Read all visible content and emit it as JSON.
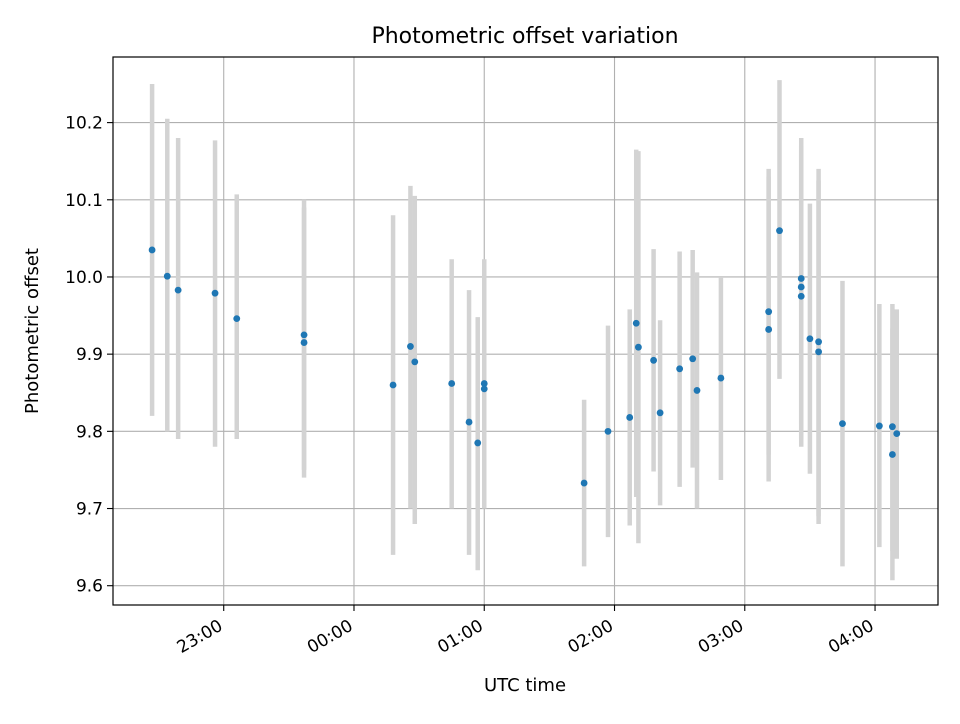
{
  "chart_data": {
    "type": "scatter",
    "title": "Photometric offset variation",
    "xlabel": "UTC time",
    "ylabel": "Photometric offset",
    "x_type": "time",
    "x_units": "UTC",
    "xlim": [
      "22:09",
      "04:29"
    ],
    "ylim": [
      9.575,
      10.285
    ],
    "x_ticks": [
      "23:00",
      "00:00",
      "01:00",
      "02:00",
      "03:00",
      "04:00"
    ],
    "y_ticks": [
      9.6,
      9.7,
      9.8,
      9.9,
      10.0,
      10.1,
      10.2
    ],
    "y_tick_labels": [
      "9.6",
      "9.7",
      "9.8",
      "9.9",
      "10.0",
      "10.1",
      "10.2"
    ],
    "grid": true,
    "colors": {
      "points": "#1f77b4",
      "errorbars": "#d3d3d3",
      "grid": "#b0b0b0"
    },
    "series": [
      {
        "points": [
          {
            "x": "22:27",
            "y": 10.035,
            "ylow": 9.82,
            "yhigh": 10.25
          },
          {
            "x": "22:34",
            "y": 10.001,
            "ylow": 9.8,
            "yhigh": 10.205
          },
          {
            "x": "22:39",
            "y": 9.983,
            "ylow": 9.79,
            "yhigh": 10.18
          },
          {
            "x": "22:56",
            "y": 9.979,
            "ylow": 9.78,
            "yhigh": 10.177
          },
          {
            "x": "23:06",
            "y": 9.946,
            "ylow": 9.79,
            "yhigh": 10.107
          },
          {
            "x": "23:37",
            "y": 9.925,
            "ylow": 9.74,
            "yhigh": 10.1
          },
          {
            "x": "23:37",
            "y": 9.915,
            "ylow": 9.75,
            "yhigh": 10.09
          },
          {
            "x": "00:18",
            "y": 9.86,
            "ylow": 9.64,
            "yhigh": 10.08
          },
          {
            "x": "00:26",
            "y": 9.91,
            "ylow": 9.7,
            "yhigh": 10.118
          },
          {
            "x": "00:28",
            "y": 9.89,
            "ylow": 9.68,
            "yhigh": 10.105
          },
          {
            "x": "00:45",
            "y": 9.862,
            "ylow": 9.7,
            "yhigh": 10.023
          },
          {
            "x": "00:53",
            "y": 9.812,
            "ylow": 9.64,
            "yhigh": 9.983
          },
          {
            "x": "00:57",
            "y": 9.785,
            "ylow": 9.62,
            "yhigh": 9.948
          },
          {
            "x": "01:00",
            "y": 9.862,
            "ylow": 9.7,
            "yhigh": 10.023
          },
          {
            "x": "01:00",
            "y": 9.855,
            "ylow": 9.7,
            "yhigh": 10.01
          },
          {
            "x": "01:46",
            "y": 9.733,
            "ylow": 9.625,
            "yhigh": 9.841
          },
          {
            "x": "01:57",
            "y": 9.8,
            "ylow": 9.663,
            "yhigh": 9.937
          },
          {
            "x": "02:07",
            "y": 9.818,
            "ylow": 9.678,
            "yhigh": 9.958
          },
          {
            "x": "02:10",
            "y": 9.94,
            "ylow": 9.715,
            "yhigh": 10.165
          },
          {
            "x": "02:11",
            "y": 9.909,
            "ylow": 9.655,
            "yhigh": 10.163
          },
          {
            "x": "02:18",
            "y": 9.892,
            "ylow": 9.748,
            "yhigh": 10.036
          },
          {
            "x": "02:21",
            "y": 9.824,
            "ylow": 9.704,
            "yhigh": 9.944
          },
          {
            "x": "02:30",
            "y": 9.881,
            "ylow": 9.728,
            "yhigh": 10.033
          },
          {
            "x": "02:36",
            "y": 9.894,
            "ylow": 9.753,
            "yhigh": 10.035
          },
          {
            "x": "02:38",
            "y": 9.853,
            "ylow": 9.7,
            "yhigh": 10.006
          },
          {
            "x": "02:49",
            "y": 9.869,
            "ylow": 9.737,
            "yhigh": 10.0
          },
          {
            "x": "03:11",
            "y": 9.955,
            "ylow": 9.77,
            "yhigh": 10.14
          },
          {
            "x": "03:11",
            "y": 9.932,
            "ylow": 9.735,
            "yhigh": 10.13
          },
          {
            "x": "03:16",
            "y": 10.06,
            "ylow": 9.868,
            "yhigh": 10.255
          },
          {
            "x": "03:26",
            "y": 9.998,
            "ylow": 9.81,
            "yhigh": 10.18
          },
          {
            "x": "03:26",
            "y": 9.987,
            "ylow": 9.79,
            "yhigh": 10.17
          },
          {
            "x": "03:26",
            "y": 9.975,
            "ylow": 9.78,
            "yhigh": 10.165
          },
          {
            "x": "03:30",
            "y": 9.92,
            "ylow": 9.745,
            "yhigh": 10.095
          },
          {
            "x": "03:34",
            "y": 9.916,
            "ylow": 9.69,
            "yhigh": 10.14
          },
          {
            "x": "03:34",
            "y": 9.903,
            "ylow": 9.68,
            "yhigh": 10.125
          },
          {
            "x": "03:45",
            "y": 9.81,
            "ylow": 9.625,
            "yhigh": 9.995
          },
          {
            "x": "04:02",
            "y": 9.807,
            "ylow": 9.65,
            "yhigh": 9.965
          },
          {
            "x": "04:08",
            "y": 9.806,
            "ylow": 9.645,
            "yhigh": 9.965
          },
          {
            "x": "04:08",
            "y": 9.77,
            "ylow": 9.607,
            "yhigh": 9.933
          },
          {
            "x": "04:10",
            "y": 9.797,
            "ylow": 9.635,
            "yhigh": 9.958
          }
        ]
      }
    ]
  }
}
